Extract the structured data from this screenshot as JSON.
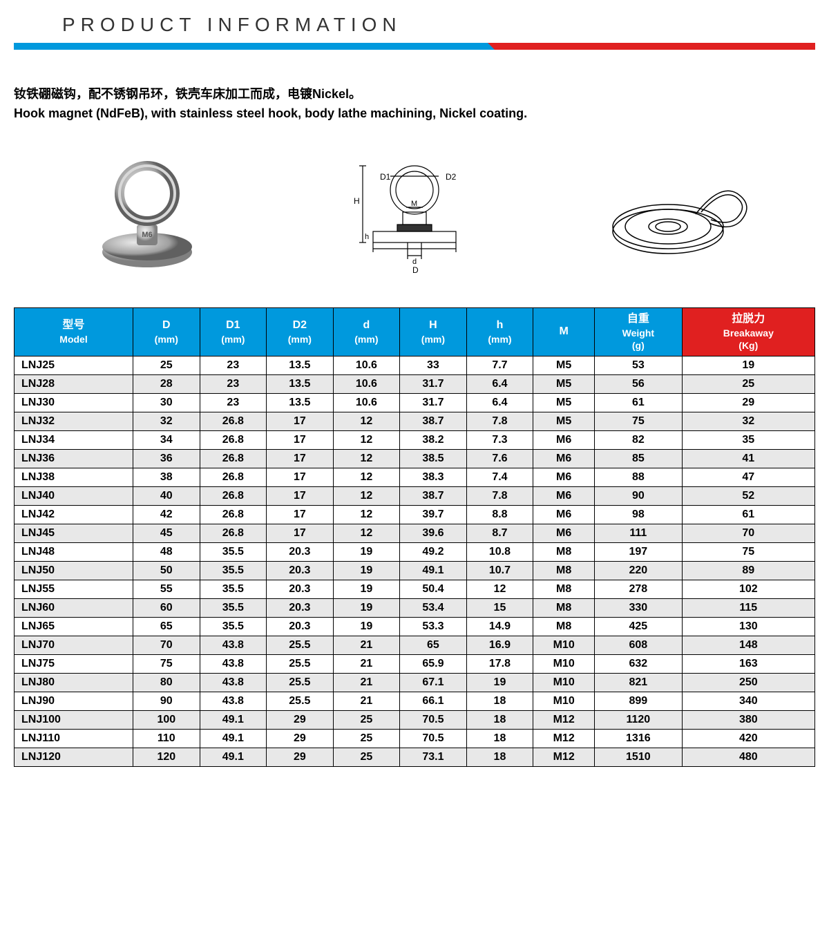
{
  "header": {
    "title": "PRODUCT   INFORMATION"
  },
  "desc": {
    "cn": "钕铁硼磁钩，配不锈钢吊环，铁壳车床加工而成，电镀Nickel。",
    "en": "Hook magnet (NdFeB), with stainless steel hook, body lathe machining, Nickel coating."
  },
  "table": {
    "columns": [
      {
        "cn": "型号",
        "en": "Model"
      },
      {
        "cn": "D",
        "en": "(mm)"
      },
      {
        "cn": "D1",
        "en": "(mm)"
      },
      {
        "cn": "D2",
        "en": "(mm)"
      },
      {
        "cn": "d",
        "en": "(mm)"
      },
      {
        "cn": "H",
        "en": "(mm)"
      },
      {
        "cn": "h",
        "en": "(mm)"
      },
      {
        "cn": "M",
        "en": ""
      },
      {
        "cn": "自重",
        "en": "Weight",
        "sub": "(g)"
      },
      {
        "cn": "拉脱力",
        "en": "Breakaway",
        "sub": "(Kg)",
        "red": true
      }
    ],
    "rows": [
      [
        "LNJ25",
        "25",
        "23",
        "13.5",
        "10.6",
        "33",
        "7.7",
        "M5",
        "53",
        "19"
      ],
      [
        "LNJ28",
        "28",
        "23",
        "13.5",
        "10.6",
        "31.7",
        "6.4",
        "M5",
        "56",
        "25"
      ],
      [
        "LNJ30",
        "30",
        "23",
        "13.5",
        "10.6",
        "31.7",
        "6.4",
        "M5",
        "61",
        "29"
      ],
      [
        "LNJ32",
        "32",
        "26.8",
        "17",
        "12",
        "38.7",
        "7.8",
        "M5",
        "75",
        "32"
      ],
      [
        "LNJ34",
        "34",
        "26.8",
        "17",
        "12",
        "38.2",
        "7.3",
        "M6",
        "82",
        "35"
      ],
      [
        "LNJ36",
        "36",
        "26.8",
        "17",
        "12",
        "38.5",
        "7.6",
        "M6",
        "85",
        "41"
      ],
      [
        "LNJ38",
        "38",
        "26.8",
        "17",
        "12",
        "38.3",
        "7.4",
        "M6",
        "88",
        "47"
      ],
      [
        "LNJ40",
        "40",
        "26.8",
        "17",
        "12",
        "38.7",
        "7.8",
        "M6",
        "90",
        "52"
      ],
      [
        "LNJ42",
        "42",
        "26.8",
        "17",
        "12",
        "39.7",
        "8.8",
        "M6",
        "98",
        "61"
      ],
      [
        "LNJ45",
        "45",
        "26.8",
        "17",
        "12",
        "39.6",
        "8.7",
        "M6",
        "111",
        "70"
      ],
      [
        "LNJ48",
        "48",
        "35.5",
        "20.3",
        "19",
        "49.2",
        "10.8",
        "M8",
        "197",
        "75"
      ],
      [
        "LNJ50",
        "50",
        "35.5",
        "20.3",
        "19",
        "49.1",
        "10.7",
        "M8",
        "220",
        "89"
      ],
      [
        "LNJ55",
        "55",
        "35.5",
        "20.3",
        "19",
        "50.4",
        "12",
        "M8",
        "278",
        "102"
      ],
      [
        "LNJ60",
        "60",
        "35.5",
        "20.3",
        "19",
        "53.4",
        "15",
        "M8",
        "330",
        "115"
      ],
      [
        "LNJ65",
        "65",
        "35.5",
        "20.3",
        "19",
        "53.3",
        "14.9",
        "M8",
        "425",
        "130"
      ],
      [
        "LNJ70",
        "70",
        "43.8",
        "25.5",
        "21",
        "65",
        "16.9",
        "M10",
        "608",
        "148"
      ],
      [
        "LNJ75",
        "75",
        "43.8",
        "25.5",
        "21",
        "65.9",
        "17.8",
        "M10",
        "632",
        "163"
      ],
      [
        "LNJ80",
        "80",
        "43.8",
        "25.5",
        "21",
        "67.1",
        "19",
        "M10",
        "821",
        "250"
      ],
      [
        "LNJ90",
        "90",
        "43.8",
        "25.5",
        "21",
        "66.1",
        "18",
        "M10",
        "899",
        "340"
      ],
      [
        "LNJ100",
        "100",
        "49.1",
        "29",
        "25",
        "70.5",
        "18",
        "M12",
        "1120",
        "380"
      ],
      [
        "LNJ110",
        "110",
        "49.1",
        "29",
        "25",
        "70.5",
        "18",
        "M12",
        "1316",
        "420"
      ],
      [
        "LNJ120",
        "120",
        "49.1",
        "29",
        "25",
        "73.1",
        "18",
        "M12",
        "1510",
        "480"
      ]
    ]
  },
  "colors": {
    "header_blue": "#0099dd",
    "header_red": "#e02020",
    "row_alt": "#e8e8e8"
  }
}
